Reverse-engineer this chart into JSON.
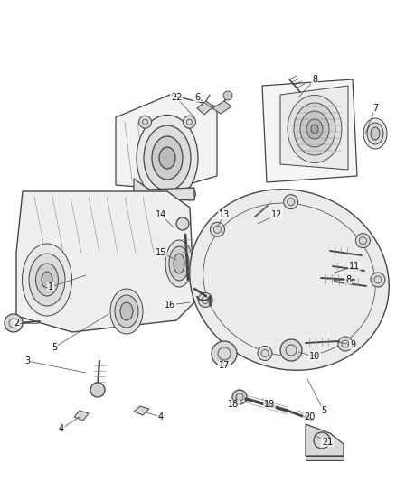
{
  "bg_color": "#ffffff",
  "lc": "#444444",
  "lc_light": "#888888",
  "figsize": [
    4.38,
    5.33
  ],
  "dpi": 100,
  "callouts": [
    [
      "1",
      56,
      318,
      95,
      305
    ],
    [
      "2",
      18,
      358,
      42,
      358
    ],
    [
      "3",
      30,
      400,
      95,
      413
    ],
    [
      "4",
      68,
      475,
      88,
      462
    ],
    [
      "4",
      178,
      462,
      158,
      456
    ],
    [
      "5",
      60,
      385,
      120,
      348
    ],
    [
      "5",
      358,
      455,
      340,
      420
    ],
    [
      "6",
      218,
      108,
      235,
      120
    ],
    [
      "7",
      415,
      120,
      404,
      148
    ],
    [
      "8",
      348,
      88,
      330,
      108
    ],
    [
      "8",
      385,
      310,
      368,
      310
    ],
    [
      "9",
      390,
      382,
      368,
      378
    ],
    [
      "10",
      348,
      395,
      330,
      390
    ],
    [
      "11",
      392,
      295,
      370,
      302
    ],
    [
      "12",
      306,
      238,
      285,
      248
    ],
    [
      "13",
      248,
      238,
      240,
      252
    ],
    [
      "14",
      178,
      238,
      192,
      252
    ],
    [
      "15",
      178,
      280,
      195,
      288
    ],
    [
      "16",
      188,
      338,
      210,
      335
    ],
    [
      "17",
      248,
      405,
      245,
      395
    ],
    [
      "18",
      258,
      448,
      262,
      440
    ],
    [
      "19",
      298,
      448,
      290,
      442
    ],
    [
      "20",
      342,
      462,
      330,
      455
    ],
    [
      "21",
      362,
      490,
      348,
      482
    ],
    [
      "22",
      195,
      108,
      215,
      130
    ]
  ]
}
